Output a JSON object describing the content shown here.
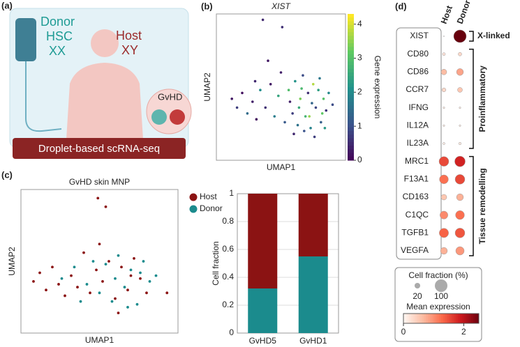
{
  "illustration": {
    "label": "(a)",
    "donor": "Donor",
    "hsc": "HSC",
    "xx": "XX",
    "host": "Host",
    "xy": "XY",
    "gvhd": "GvHD",
    "method": "Droplet-based scRNA-seq"
  },
  "chart_data": [
    {
      "type": "scatter",
      "panel": "(b)",
      "title": "XIST",
      "xlabel": "UMAP1",
      "ylabel": "UMAP2",
      "xlim": [
        0,
        10
      ],
      "ylim": [
        0,
        10
      ],
      "clim": [
        0,
        4.3
      ],
      "cticks": [
        0,
        1,
        2,
        3,
        4
      ],
      "clabel": "Gene expression",
      "colormap": "viridis",
      "x": [
        3.6,
        5.1,
        1.2,
        1.6,
        2.0,
        2.4,
        2.8,
        3.1,
        3.4,
        3.8,
        4.2,
        4.5,
        4.8,
        5.0,
        5.3,
        5.6,
        5.9,
        6.1,
        6.3,
        6.5,
        6.7,
        6.9,
        7.1,
        7.3,
        7.5,
        7.7,
        7.9,
        8.1,
        8.3,
        8.5,
        8.7,
        6.0,
        6.4,
        6.8,
        7.2,
        7.6,
        8.0,
        8.4,
        5.7,
        6.6,
        7.4,
        8.2,
        4.0,
        3.0,
        9.0
      ],
      "y": [
        9.6,
        9.1,
        4.2,
        3.6,
        4.6,
        3.2,
        4.0,
        2.8,
        4.8,
        3.6,
        5.2,
        3.0,
        4.4,
        6.0,
        2.6,
        4.8,
        3.2,
        5.4,
        2.4,
        4.2,
        5.8,
        3.0,
        4.6,
        2.2,
        5.2,
        3.6,
        4.8,
        2.6,
        4.2,
        3.4,
        4.6,
        1.8,
        3.6,
        2.0,
        3.0,
        1.6,
        5.6,
        2.2,
        4.0,
        4.9,
        3.9,
        3.2,
        6.8,
        5.4,
        3.8
      ],
      "c": [
        0.5,
        0.6,
        0.3,
        0.8,
        0.2,
        1.5,
        0.4,
        0.2,
        2.1,
        0.6,
        0.3,
        1.8,
        2.5,
        0.4,
        1.2,
        3.0,
        0.8,
        2.2,
        1.6,
        3.4,
        1.0,
        2.8,
        0.6,
        1.9,
        3.8,
        0.9,
        2.4,
        1.3,
        3.1,
        0.7,
        2.0,
        0.5,
        2.6,
        1.1,
        3.6,
        0.8,
        1.7,
        2.3,
        0.4,
        2.9,
        1.4,
        3.2,
        0.3,
        0.5,
        1.0
      ]
    },
    {
      "type": "scatter",
      "panel": "(c)",
      "title": "GvHD skin MNP",
      "xlabel": "UMAP1",
      "ylabel": "UMAP2",
      "xlim": [
        0,
        10
      ],
      "ylim": [
        0,
        10
      ],
      "legend": "outside-right",
      "series": [
        {
          "name": "Host",
          "color": "#8b1313",
          "x": [
            4.9,
            5.4,
            0.8,
            1.2,
            1.6,
            2.0,
            2.4,
            2.8,
            3.2,
            3.6,
            4.0,
            4.4,
            4.8,
            5.2,
            5.6,
            6.0,
            6.4,
            6.8,
            7.2,
            7.6,
            8.0,
            9.3,
            5.0,
            6.2,
            7.0
          ],
          "y": [
            9.4,
            8.8,
            3.6,
            4.2,
            3.0,
            4.6,
            3.4,
            2.6,
            4.0,
            3.2,
            5.6,
            2.8,
            4.4,
            3.6,
            5.0,
            2.4,
            4.6,
            3.0,
            5.2,
            3.8,
            2.8,
            2.8,
            6.2,
            1.4,
            4.0
          ]
        },
        {
          "name": "Donor",
          "color": "#1b8b8d",
          "x": [
            2.6,
            3.4,
            4.2,
            5.4,
            5.8,
            6.2,
            6.6,
            7.0,
            7.4,
            7.8,
            8.2,
            6.0,
            6.8,
            7.6,
            5.0,
            4.6,
            3.8,
            8.6
          ],
          "y": [
            3.8,
            4.6,
            3.4,
            4.8,
            2.2,
            5.4,
            3.2,
            4.4,
            2.0,
            5.0,
            3.6,
            3.8,
            1.8,
            4.2,
            2.8,
            5.0,
            2.2,
            4.0
          ]
        }
      ]
    },
    {
      "type": "stacked-bar",
      "ylabel": "Cell fraction",
      "categories": [
        "GvHD5",
        "GvHD1"
      ],
      "ylim": [
        0,
        1
      ],
      "yticks": [
        0,
        0.2,
        0.4,
        0.6,
        0.8,
        1
      ],
      "grid": true,
      "series": [
        {
          "color": "#1b8b8d",
          "values": [
            0.32,
            0.55
          ]
        },
        {
          "color": "#8b1313",
          "values": [
            0.68,
            0.45
          ]
        }
      ]
    },
    {
      "type": "dot",
      "panel": "(d)",
      "groups": [
        "Host",
        "Donor"
      ],
      "gene_sets": [
        {
          "label": "X-linked",
          "genes": [
            "XIST"
          ],
          "fraction": [
            [
              0,
              100
            ]
          ],
          "expression": [
            [
              0,
              2.5
            ]
          ]
        },
        {
          "label": "Proinflammatory",
          "genes": [
            "CD80",
            "CD86",
            "CCR7",
            "IFNG",
            "IL12A",
            "IL23A"
          ],
          "fraction": [
            [
              5,
              8
            ],
            [
              20,
              30
            ],
            [
              10,
              15
            ],
            [
              2,
              2
            ],
            [
              2,
              2
            ],
            [
              3,
              4
            ]
          ],
          "expression": [
            [
              0.2,
              0.3
            ],
            [
              0.6,
              0.8
            ],
            [
              0.3,
              0.5
            ],
            [
              0.1,
              0.1
            ],
            [
              0.1,
              0.1
            ],
            [
              0.1,
              0.1
            ]
          ]
        },
        {
          "label": "Tissue remodelling",
          "genes": [
            "MRC1",
            "F13A1",
            "CD163",
            "C1QC",
            "TGFB1",
            "VEGFA"
          ],
          "fraction": [
            [
              60,
              70
            ],
            [
              50,
              60
            ],
            [
              20,
              30
            ],
            [
              40,
              50
            ],
            [
              55,
              60
            ],
            [
              30,
              45
            ]
          ],
          "expression": [
            [
              1.5,
              1.8
            ],
            [
              1.2,
              1.5
            ],
            [
              0.5,
              0.7
            ],
            [
              1.0,
              1.2
            ],
            [
              1.3,
              1.4
            ],
            [
              0.7,
              0.9
            ]
          ]
        }
      ],
      "size_legend": {
        "title": "Cell fraction (%)",
        "values": [
          20,
          100
        ]
      },
      "color_legend": {
        "title": "Mean expression",
        "lim": [
          0,
          2.5
        ],
        "ticks": [
          0,
          2
        ]
      }
    }
  ]
}
